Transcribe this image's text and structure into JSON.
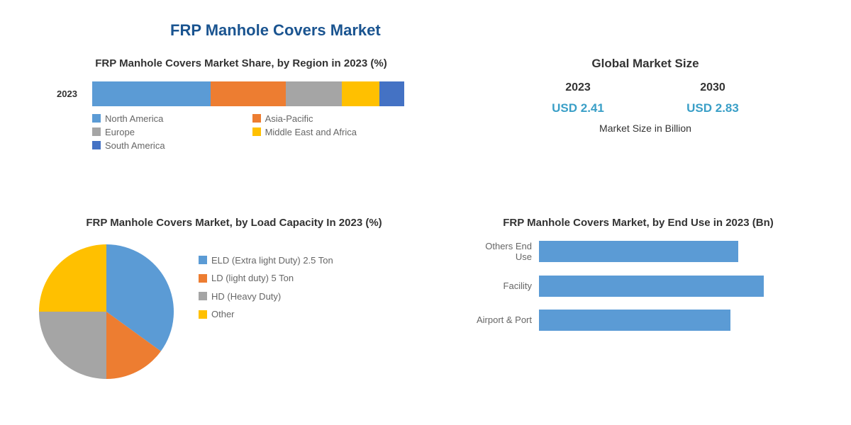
{
  "main_title": "FRP Manhole Covers Market",
  "region_chart": {
    "type": "stacked-bar",
    "title": "FRP Manhole Covers Market Share, by Region in 2023 (%)",
    "year_label": "2023",
    "segments": [
      {
        "name": "North America",
        "value": 38,
        "color": "#5b9bd5"
      },
      {
        "name": "Asia-Pacific",
        "value": 24,
        "color": "#ed7d31"
      },
      {
        "name": "Europe",
        "value": 18,
        "color": "#a5a5a5"
      },
      {
        "name": "Middle East and Africa",
        "value": 12,
        "color": "#ffc000"
      },
      {
        "name": "South America",
        "value": 8,
        "color": "#4472c4"
      }
    ],
    "label_fontsize": 13,
    "title_fontsize": 15,
    "title_color": "#333333",
    "legend_fontsize": 13,
    "legend_color": "#666666",
    "background_color": "#ffffff"
  },
  "market_size": {
    "title": "Global Market Size",
    "years": [
      {
        "year": "2023",
        "value": "USD 2.41"
      },
      {
        "year": "2030",
        "value": "USD 2.83"
      }
    ],
    "unit": "Market Size in Billion",
    "title_fontsize": 17,
    "year_fontsize": 16,
    "value_fontsize": 17,
    "value_color": "#3a9fc7",
    "text_color": "#333333"
  },
  "pie_chart": {
    "type": "pie",
    "title": "FRP Manhole Covers Market, by Load Capacity In 2023 (%)",
    "slices": [
      {
        "name": "ELD (Extra light Duty) 2.5 Ton",
        "value": 35,
        "color": "#5b9bd5"
      },
      {
        "name": "LD (light duty) 5 Ton",
        "value": 15,
        "color": "#ed7d31"
      },
      {
        "name": "HD (Heavy Duty)",
        "value": 25,
        "color": "#a5a5a5"
      },
      {
        "name": "Other",
        "value": 25,
        "color": "#ffc000"
      }
    ],
    "title_fontsize": 15,
    "legend_fontsize": 13,
    "background_color": "#ffffff"
  },
  "end_use_chart": {
    "type": "bar",
    "title": "FRP Manhole Covers Market, by End Use in 2023 (Bn)",
    "bars": [
      {
        "name": "Others End Use",
        "value": 0.78
      },
      {
        "name": "Facility",
        "value": 0.88
      },
      {
        "name": "Airport & Port",
        "value": 0.75
      }
    ],
    "bar_color": "#5b9bd5",
    "xlim": [
      0,
      1.0
    ],
    "title_fontsize": 15,
    "label_fontsize": 13,
    "label_color": "#666666",
    "background_color": "#ffffff"
  }
}
